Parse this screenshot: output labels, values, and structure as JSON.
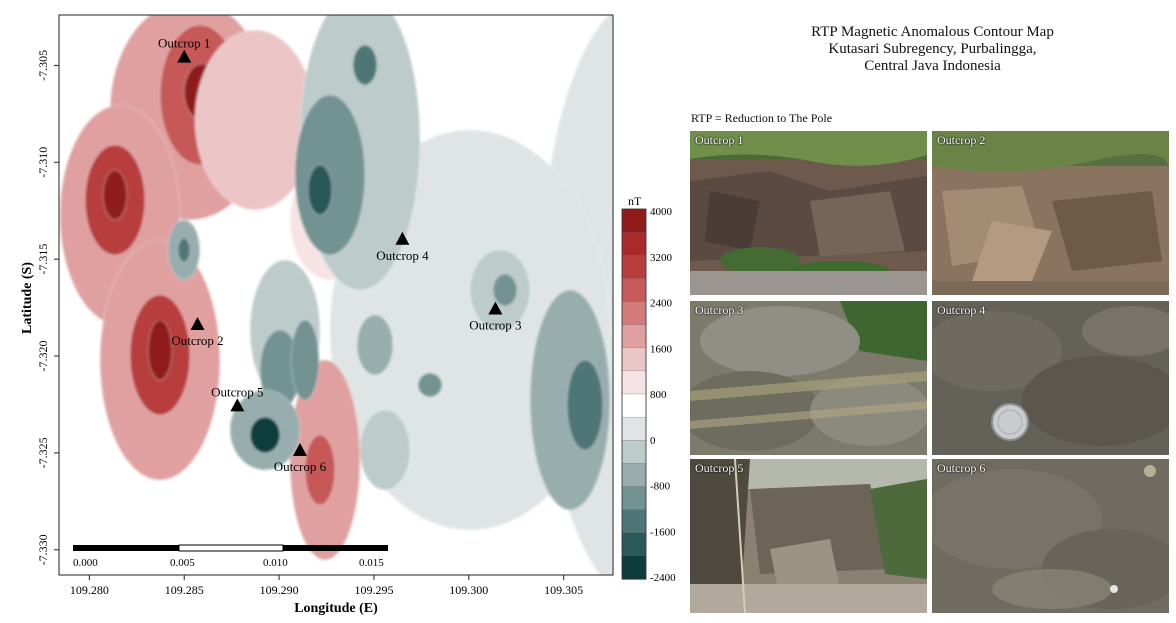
{
  "map": {
    "x_axis_label": "Longitude (E)",
    "y_axis_label": "Latitude (S)",
    "x_ticks": [
      "109.280",
      "109.285",
      "109.290",
      "109.295",
      "109.300",
      "109.305"
    ],
    "y_ticks": [
      "-7.305",
      "-7.310",
      "-7.315",
      "-7.320",
      "-7.325",
      "-7.330"
    ],
    "x_range": [
      109.2784,
      109.3076
    ],
    "y_range": [
      -7.3313,
      -7.3024
    ],
    "scale_bar_labels": [
      "0.000",
      "0.005",
      "0.010",
      "0.015"
    ],
    "outcrops": [
      {
        "label": "Outcrop 1",
        "lon": 109.285,
        "lat": -7.3046
      },
      {
        "label": "Outcrop 2",
        "lon": 109.2857,
        "lat": -7.3184
      },
      {
        "label": "Outcrop 3",
        "lon": 109.3014,
        "lat": -7.3176
      },
      {
        "label": "Outcrop 4",
        "lon": 109.2965,
        "lat": -7.314
      },
      {
        "label": "Outcrop 5",
        "lon": 109.2878,
        "lat": -7.3226
      },
      {
        "label": "Outcrop 6",
        "lon": 109.2911,
        "lat": -7.3249
      }
    ]
  },
  "colorbar": {
    "unit": "nT",
    "labels": [
      "4000",
      "3200",
      "2400",
      "1600",
      "800",
      "0",
      "-800",
      "-1600",
      "-2400"
    ],
    "colors": [
      "#8f1b1b",
      "#a82a2a",
      "#b83e3e",
      "#c65959",
      "#d37a7a",
      "#e0a0a0",
      "#ecc6c6",
      "#f6e4e4",
      "#ffffff",
      "#dfe5e5",
      "#bdcbcb",
      "#98aeae",
      "#739393",
      "#4f7676",
      "#2b5959",
      "#0e3c3c"
    ]
  },
  "title": {
    "line1": "RTP Magnetic Anomalous Contour Map",
    "line2": "Kutasari Subregency, Purbalingga,",
    "line3": "Central Java Indonesia"
  },
  "rtp_note": "RTP = Reduction to The Pole",
  "photos": [
    {
      "label": "Outcrop 1"
    },
    {
      "label": "Outcrop 2"
    },
    {
      "label": "Outcrop 3"
    },
    {
      "label": "Outcrop 4"
    },
    {
      "label": "Outcrop 5"
    },
    {
      "label": "Outcrop 6"
    }
  ]
}
